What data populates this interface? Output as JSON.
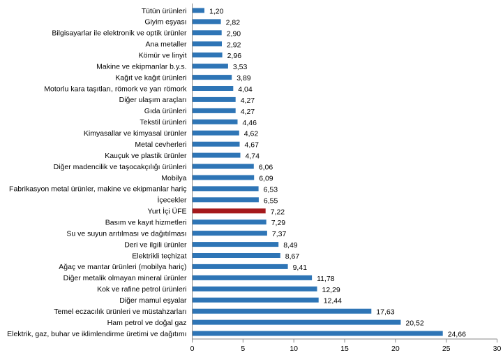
{
  "chart_data": {
    "type": "bar",
    "orientation": "horizontal",
    "title": "",
    "xlabel": "",
    "ylabel": "",
    "xlim": [
      0,
      30
    ],
    "xticks": [
      0,
      5,
      10,
      15,
      20,
      25,
      30
    ],
    "grid": false,
    "legend": "none",
    "colors": {
      "default": "#2E75B6",
      "highlight": "#A5191C",
      "axis": "#888888"
    },
    "categories": [
      "Tütün ürünleri",
      "Giyim eşyası",
      "Bilgisayarlar ile elektronik ve optik ürünler",
      "Ana metaller",
      "Kömür ve linyit",
      "Makine ve ekipmanlar b.y.s.",
      "Kağıt ve kağıt ürünleri",
      "Motorlu kara taşıtları, römork ve yarı römork",
      "Diğer ulaşım araçları",
      "Gıda ürünleri",
      "Tekstil ürünleri",
      "Kimyasallar ve kimyasal ürünler",
      "Metal cevherleri",
      "Kauçuk ve plastik ürünler",
      "Diğer madencilik ve taşocakçılığı ürünleri",
      "Mobilya",
      "Fabrikasyon metal ürünler, makine ve ekipmanlar hariç",
      "İçecekler",
      "Yurt İçi ÜFE",
      "Basım ve kayıt hizmetleri",
      "Su ve suyun arıtılması ve dağıtılması",
      "Deri ve ilgili ürünler",
      "Elektrikli teçhizat",
      "Ağaç ve mantar ürünleri (mobilya hariç)",
      "Diğer metalik olmayan mineral ürünler",
      "Kok ve rafine petrol ürünleri",
      "Diğer mamul eşyalar",
      "Temel eczacılık ürünleri ve müstahzarları",
      "Ham petrol ve doğal gaz",
      "Elektrik, gaz, buhar ve iklimlendirme üretimi ve dağıtımı"
    ],
    "values": [
      1.2,
      2.82,
      2.9,
      2.92,
      2.96,
      3.53,
      3.89,
      4.04,
      4.27,
      4.27,
      4.46,
      4.62,
      4.67,
      4.74,
      6.06,
      6.09,
      6.53,
      6.55,
      7.22,
      7.29,
      7.37,
      8.49,
      8.67,
      9.41,
      11.78,
      12.29,
      12.44,
      17.63,
      20.52,
      24.66
    ],
    "value_labels": [
      "1,20",
      "2,82",
      "2,90",
      "2,92",
      "2,96",
      "3,53",
      "3,89",
      "4,04",
      "4,27",
      "4,27",
      "4,46",
      "4,62",
      "4,67",
      "4,74",
      "6,06",
      "6,09",
      "6,53",
      "6,55",
      "7,22",
      "7,29",
      "7,37",
      "8,49",
      "8,67",
      "9,41",
      "11,78",
      "12,29",
      "12,44",
      "17,63",
      "20,52",
      "24,66"
    ],
    "highlight_category": "Yurt İçi ÜFE"
  }
}
